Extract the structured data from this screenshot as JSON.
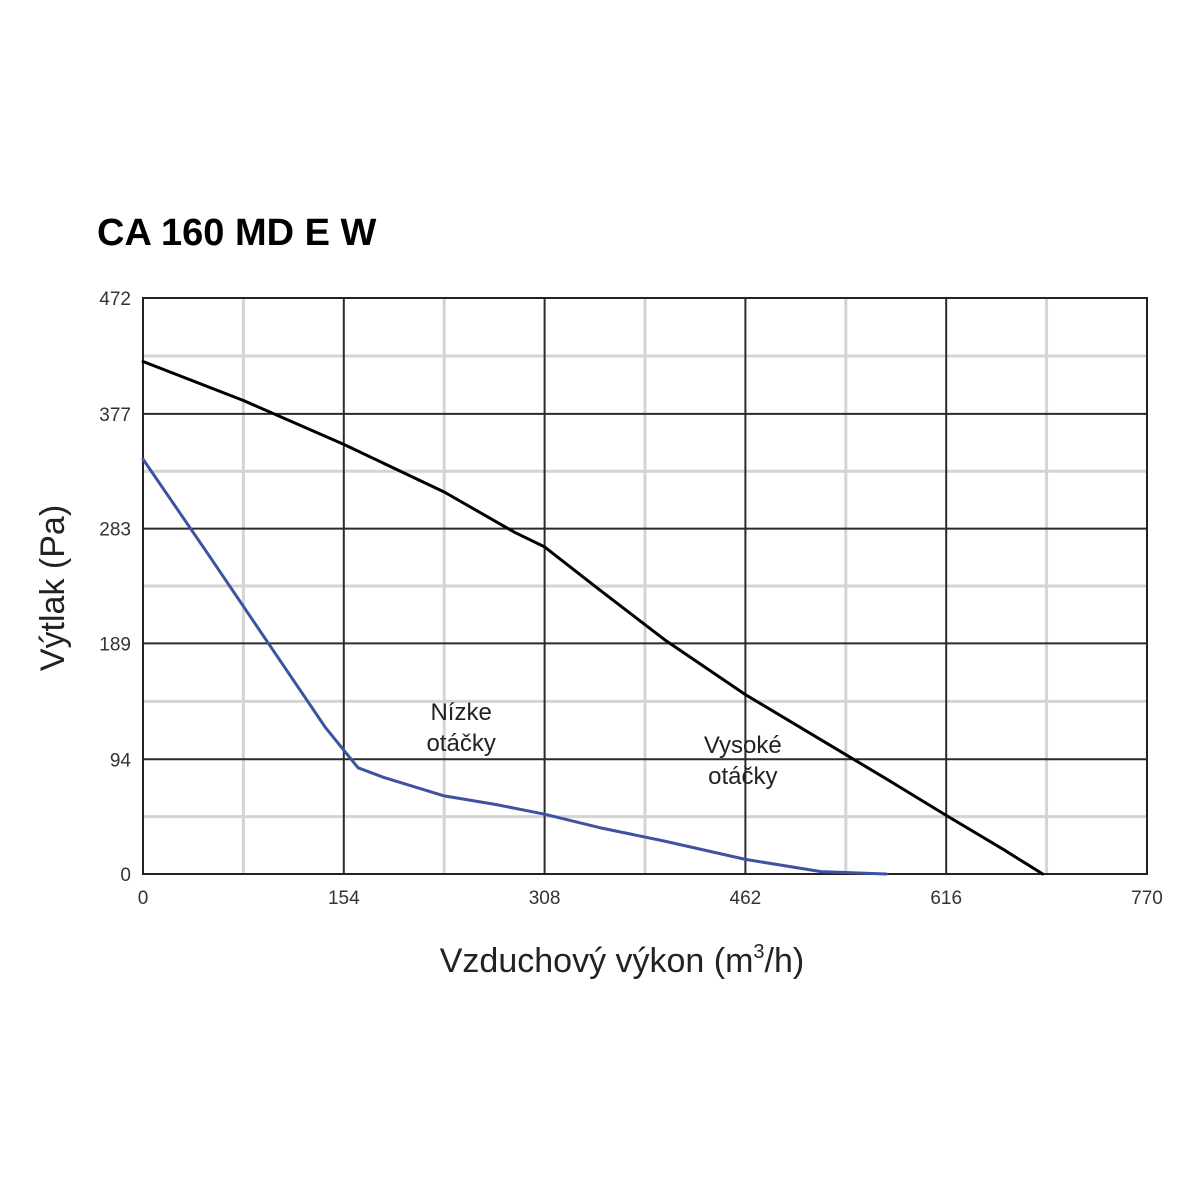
{
  "chart_data": {
    "type": "line",
    "title": "CA 160 MD E W",
    "xlabel": "Vzduchový výkon (m",
    "xlabel_sup": "3",
    "xlabel_suffix": "/h)",
    "ylabel": "Výtlak (Pa)",
    "xlim": [
      0,
      770
    ],
    "ylim": [
      0,
      472
    ],
    "xticks": [
      0,
      154,
      308,
      462,
      616,
      770
    ],
    "yticks": [
      0,
      94,
      189,
      283,
      377,
      472
    ],
    "xtick_labels": [
      "0",
      "154",
      "308",
      "462",
      "616",
      "770"
    ],
    "ytick_labels": [
      "0",
      "94",
      "189",
      "283",
      "377",
      "472"
    ],
    "grid": true,
    "annotations": [
      {
        "lines": [
          "Nízke",
          "otáčky"
        ]
      },
      {
        "lines": [
          "Vysoké",
          "otáčky"
        ]
      }
    ],
    "series": [
      {
        "color": "#000000",
        "points": [
          [
            0,
            420
          ],
          [
            77,
            388
          ],
          [
            154,
            352
          ],
          [
            231,
            313
          ],
          [
            285,
            280
          ],
          [
            308,
            268
          ],
          [
            350,
            233
          ],
          [
            400,
            192
          ],
          [
            462,
            147
          ],
          [
            520,
            110
          ],
          [
            570,
            78
          ],
          [
            616,
            48
          ],
          [
            660,
            20
          ],
          [
            678,
            8
          ],
          [
            690,
            0
          ]
        ]
      },
      {
        "color": "#3d52a1",
        "points": [
          [
            0,
            340
          ],
          [
            50,
            262
          ],
          [
            100,
            183
          ],
          [
            140,
            120
          ],
          [
            165,
            87
          ],
          [
            185,
            79
          ],
          [
            231,
            64
          ],
          [
            270,
            57
          ],
          [
            308,
            49
          ],
          [
            350,
            38
          ],
          [
            400,
            27
          ],
          [
            462,
            12
          ],
          [
            520,
            2
          ],
          [
            570,
            0
          ]
        ]
      }
    ]
  }
}
